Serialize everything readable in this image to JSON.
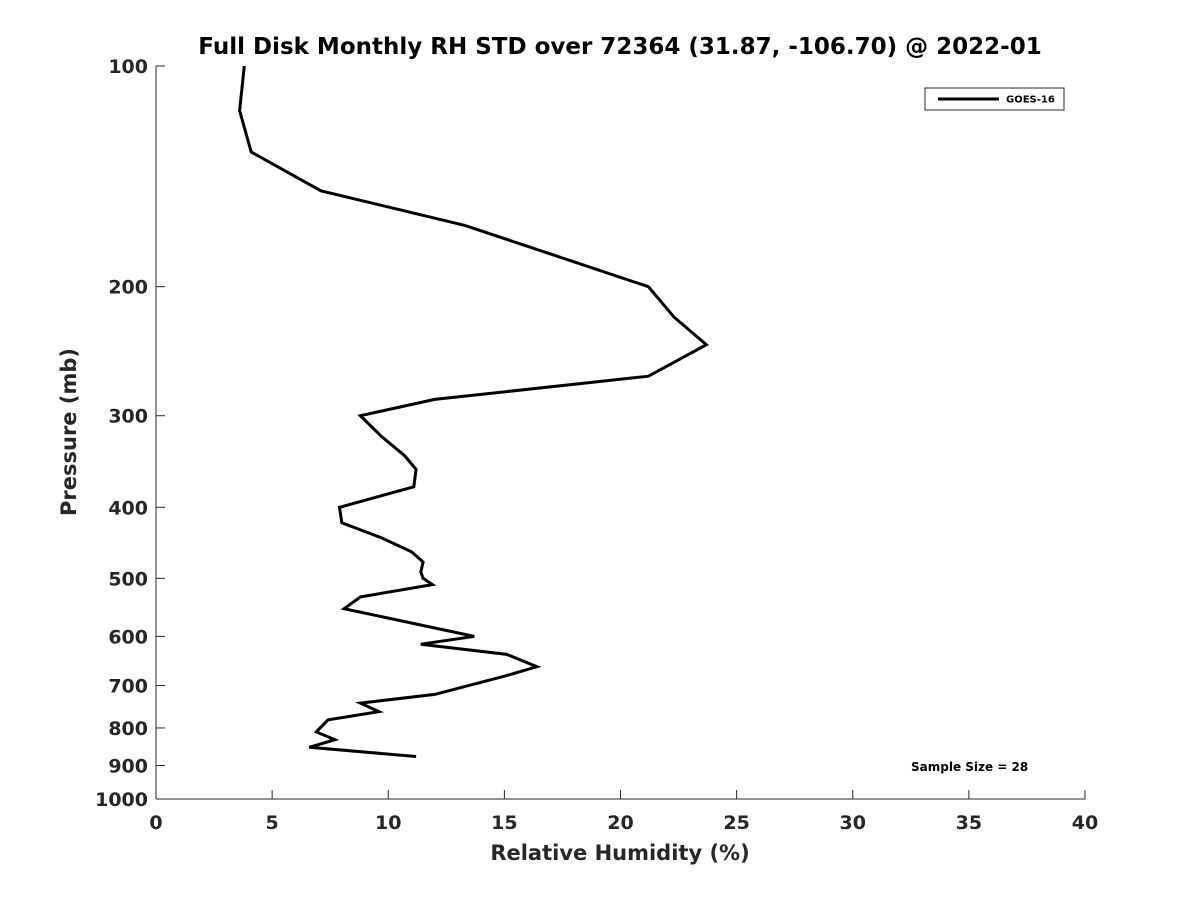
{
  "chart_data": {
    "type": "line",
    "title": "Full Disk Monthly RH STD over 72364 (31.87, -106.70) @ 2022-01",
    "xlabel": "Relative Humidity (%)",
    "ylabel": "Pressure (mb)",
    "xlim": [
      0,
      40
    ],
    "ylim": [
      100,
      1000
    ],
    "yscale": "log",
    "reversed_y": true,
    "x_ticks": [
      0,
      5,
      10,
      15,
      20,
      25,
      30,
      35,
      40
    ],
    "y_ticks": [
      100,
      200,
      300,
      400,
      500,
      600,
      700,
      800,
      900,
      1000
    ],
    "grid": false,
    "legend_position": "top-right",
    "annotation": "Sample Size = 28",
    "line_color": "#000000",
    "series": [
      {
        "name": "GOES-16",
        "points": [
          {
            "rh": 3.8,
            "p": 100
          },
          {
            "rh": 3.6,
            "p": 115
          },
          {
            "rh": 4.1,
            "p": 131
          },
          {
            "rh": 7.1,
            "p": 148
          },
          {
            "rh": 13.3,
            "p": 165
          },
          {
            "rh": 21.2,
            "p": 200
          },
          {
            "rh": 22.3,
            "p": 220
          },
          {
            "rh": 23.7,
            "p": 240
          },
          {
            "rh": 21.2,
            "p": 265
          },
          {
            "rh": 12.0,
            "p": 285
          },
          {
            "rh": 8.8,
            "p": 300
          },
          {
            "rh": 9.7,
            "p": 320
          },
          {
            "rh": 10.7,
            "p": 340
          },
          {
            "rh": 11.2,
            "p": 355
          },
          {
            "rh": 11.1,
            "p": 375
          },
          {
            "rh": 7.9,
            "p": 400
          },
          {
            "rh": 8.0,
            "p": 420
          },
          {
            "rh": 9.7,
            "p": 440
          },
          {
            "rh": 11.0,
            "p": 460
          },
          {
            "rh": 11.5,
            "p": 475
          },
          {
            "rh": 11.4,
            "p": 490
          },
          {
            "rh": 11.5,
            "p": 500
          },
          {
            "rh": 11.9,
            "p": 510
          },
          {
            "rh": 8.8,
            "p": 530
          },
          {
            "rh": 8.1,
            "p": 550
          },
          {
            "rh": 13.7,
            "p": 600
          },
          {
            "rh": 11.4,
            "p": 615
          },
          {
            "rh": 15.1,
            "p": 635
          },
          {
            "rh": 16.4,
            "p": 660
          },
          {
            "rh": 15.0,
            "p": 680
          },
          {
            "rh": 12.0,
            "p": 720
          },
          {
            "rh": 8.8,
            "p": 740
          },
          {
            "rh": 9.6,
            "p": 760
          },
          {
            "rh": 7.4,
            "p": 780
          },
          {
            "rh": 6.9,
            "p": 810
          },
          {
            "rh": 7.7,
            "p": 830
          },
          {
            "rh": 6.6,
            "p": 850
          },
          {
            "rh": 11.2,
            "p": 875
          }
        ]
      }
    ]
  }
}
